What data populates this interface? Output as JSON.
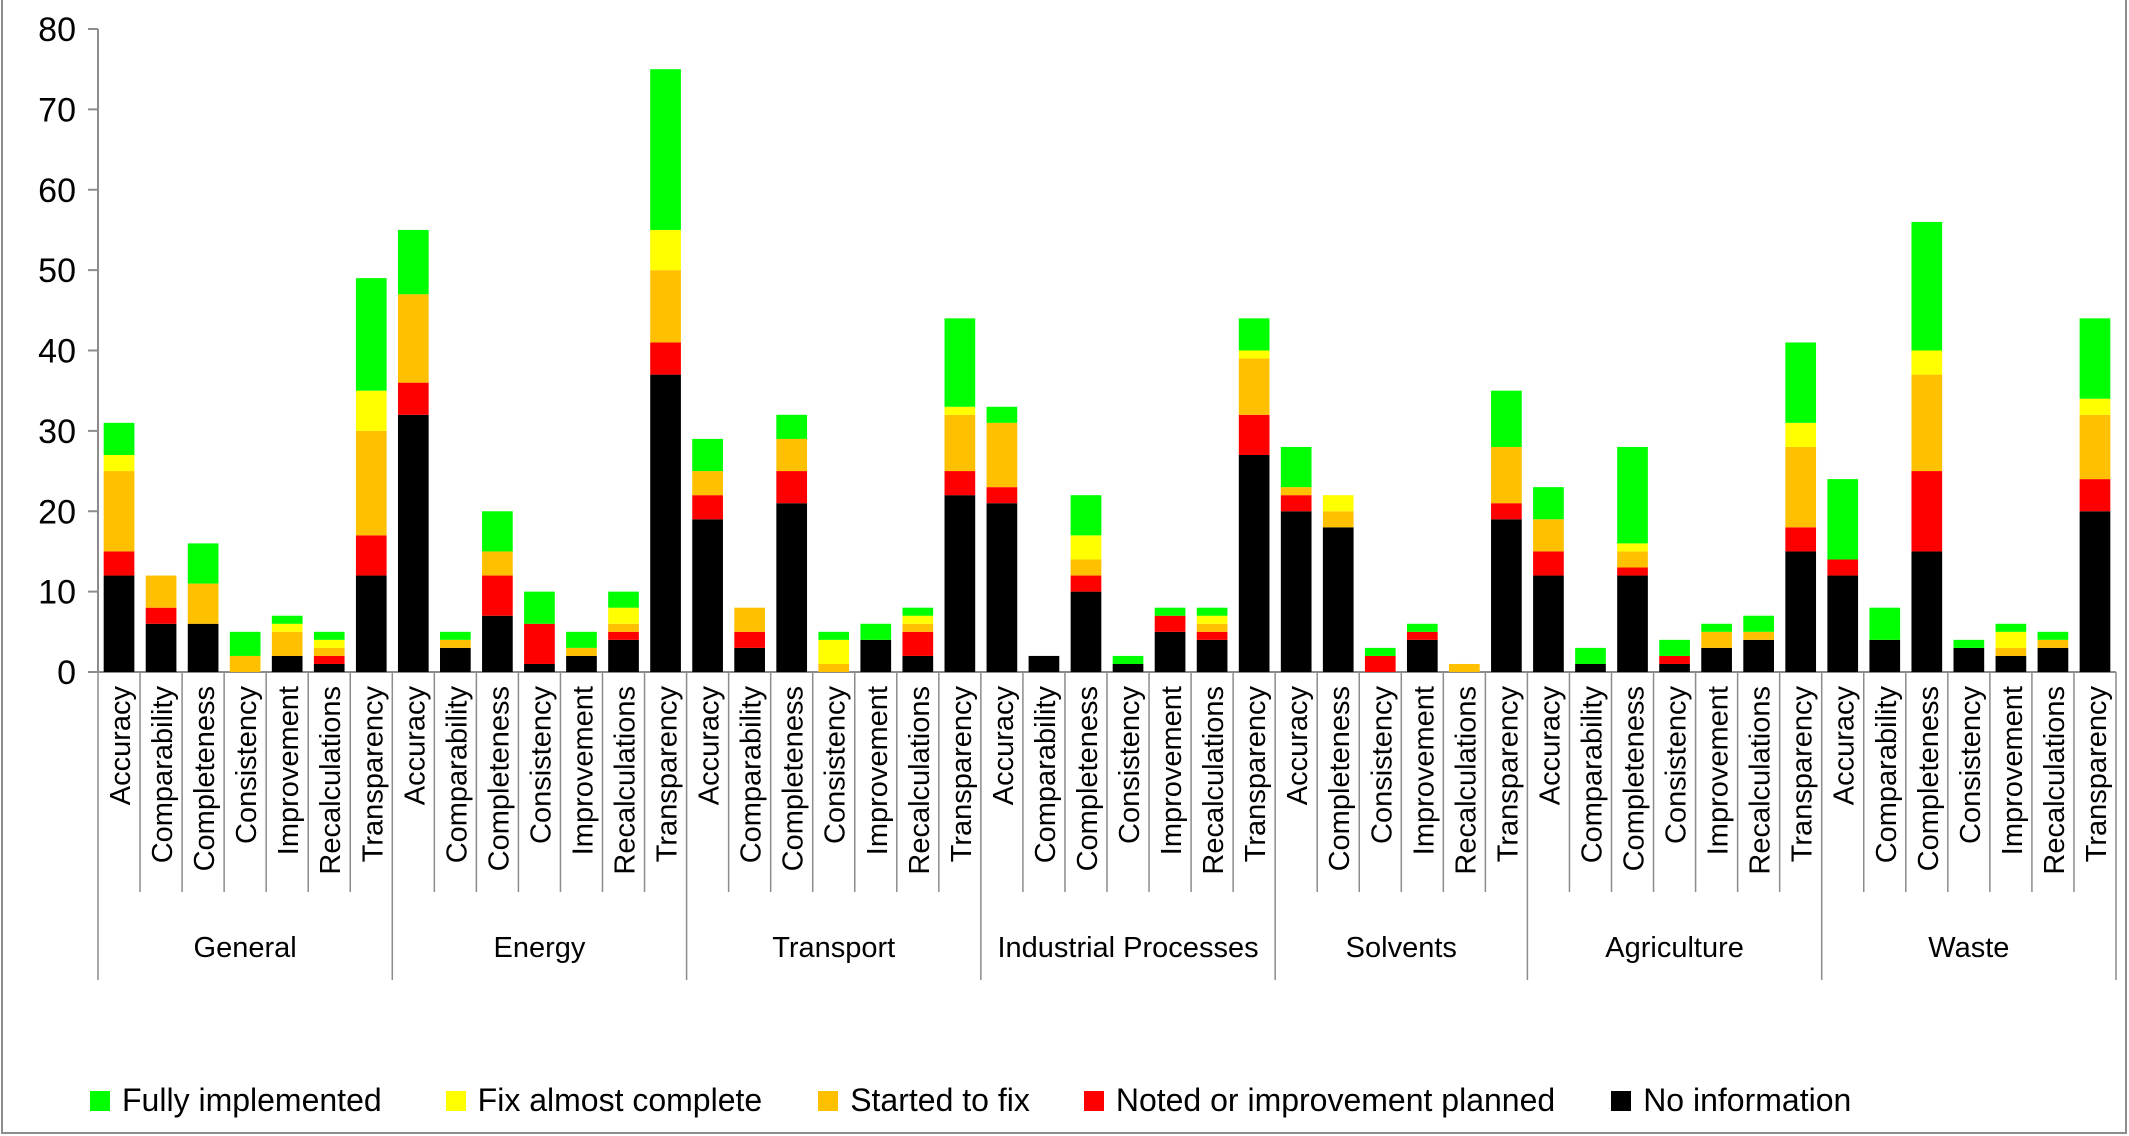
{
  "chart_data": {
    "type": "bar",
    "stacked": true,
    "ylim": [
      0,
      80
    ],
    "yticks": [
      0,
      10,
      20,
      30,
      40,
      50,
      60,
      70,
      80
    ],
    "grid": false,
    "legend_position": "bottom",
    "series": [
      {
        "name": "No information",
        "color": "#000000"
      },
      {
        "name": "Noted or improvement planned",
        "color": "#ff0000"
      },
      {
        "name": "Started to fix",
        "color": "#ffc000"
      },
      {
        "name": "Fix almost complete",
        "color": "#ffff00"
      },
      {
        "name": "Fully implemented",
        "color": "#00ff00"
      }
    ],
    "legend_order": [
      "Fully implemented",
      "Fix almost complete",
      "Started to fix",
      "Noted or improvement planned",
      "No information"
    ],
    "groups": [
      {
        "name": "General",
        "bars": [
          {
            "label": "Accuracy",
            "values": [
              12,
              3,
              10,
              2,
              4
            ]
          },
          {
            "label": "Comparability",
            "values": [
              6,
              2,
              4,
              0,
              0
            ]
          },
          {
            "label": "Completeness",
            "values": [
              6,
              0,
              5,
              0,
              5
            ]
          },
          {
            "label": "Consistency",
            "values": [
              0,
              0,
              2,
              0,
              3
            ]
          },
          {
            "label": "Improvement",
            "values": [
              2,
              0,
              3,
              1,
              1
            ]
          },
          {
            "label": "Recalculations",
            "values": [
              1,
              1,
              1,
              1,
              1
            ]
          },
          {
            "label": "Transparency",
            "values": [
              12,
              5,
              13,
              5,
              14
            ]
          }
        ]
      },
      {
        "name": "Energy",
        "bars": [
          {
            "label": "Accuracy",
            "values": [
              32,
              4,
              11,
              0,
              8
            ]
          },
          {
            "label": "Comparability",
            "values": [
              3,
              0,
              1,
              0,
              1
            ]
          },
          {
            "label": "Completeness",
            "values": [
              7,
              5,
              3,
              0,
              5
            ]
          },
          {
            "label": "Consistency",
            "values": [
              1,
              5,
              0,
              0,
              4
            ]
          },
          {
            "label": "Improvement",
            "values": [
              2,
              0,
              1,
              0,
              2
            ]
          },
          {
            "label": "Recalculations",
            "values": [
              4,
              1,
              1,
              2,
              2
            ]
          },
          {
            "label": "Transparency",
            "values": [
              37,
              4,
              9,
              5,
              20
            ]
          }
        ]
      },
      {
        "name": "Transport",
        "bars": [
          {
            "label": "Accuracy",
            "values": [
              19,
              3,
              3,
              0,
              4
            ]
          },
          {
            "label": "Comparability",
            "values": [
              3,
              2,
              3,
              0,
              0
            ]
          },
          {
            "label": "Completeness",
            "values": [
              21,
              4,
              4,
              0,
              3
            ]
          },
          {
            "label": "Consistency",
            "values": [
              0,
              0,
              1,
              3,
              1
            ]
          },
          {
            "label": "Improvement",
            "values": [
              4,
              0,
              0,
              0,
              2
            ]
          },
          {
            "label": "Recalculations",
            "values": [
              2,
              3,
              1,
              1,
              1
            ]
          },
          {
            "label": "Transparency",
            "values": [
              22,
              3,
              7,
              1,
              11
            ]
          }
        ]
      },
      {
        "name": "Industrial Processes",
        "bars": [
          {
            "label": "Accuracy",
            "values": [
              21,
              2,
              8,
              0,
              2
            ]
          },
          {
            "label": "Comparability",
            "values": [
              2,
              0,
              0,
              0,
              0
            ]
          },
          {
            "label": "Completeness",
            "values": [
              10,
              2,
              2,
              3,
              5
            ]
          },
          {
            "label": "Consistency",
            "values": [
              1,
              0,
              0,
              0,
              1
            ]
          },
          {
            "label": "Improvement",
            "values": [
              5,
              2,
              0,
              0,
              1
            ]
          },
          {
            "label": "Recalculations",
            "values": [
              4,
              1,
              1,
              1,
              1
            ]
          },
          {
            "label": "Transparency",
            "values": [
              27,
              5,
              7,
              1,
              4
            ]
          }
        ]
      },
      {
        "name": "Solvents",
        "bars": [
          {
            "label": "Accuracy",
            "values": [
              20,
              2,
              1,
              0,
              5
            ]
          },
          {
            "label": "Completeness",
            "values": [
              18,
              0,
              2,
              2,
              0
            ]
          },
          {
            "label": "Consistency",
            "values": [
              0,
              2,
              0,
              0,
              1
            ]
          },
          {
            "label": "Improvement",
            "values": [
              4,
              1,
              0,
              0,
              1
            ]
          },
          {
            "label": "Recalculations",
            "values": [
              0,
              0,
              1,
              0,
              0
            ]
          },
          {
            "label": "Transparency",
            "values": [
              19,
              2,
              7,
              0,
              7
            ]
          }
        ]
      },
      {
        "name": "Agriculture",
        "bars": [
          {
            "label": "Accuracy",
            "values": [
              12,
              3,
              4,
              0,
              4
            ]
          },
          {
            "label": "Comparability",
            "values": [
              1,
              0,
              0,
              0,
              2
            ]
          },
          {
            "label": "Completeness",
            "values": [
              12,
              1,
              2,
              1,
              12
            ]
          },
          {
            "label": "Consistency",
            "values": [
              1,
              1,
              0,
              0,
              2
            ]
          },
          {
            "label": "Improvement",
            "values": [
              3,
              0,
              2,
              0,
              1
            ]
          },
          {
            "label": "Recalculations",
            "values": [
              4,
              0,
              1,
              0,
              2
            ]
          },
          {
            "label": "Transparency",
            "values": [
              15,
              3,
              10,
              3,
              10
            ]
          }
        ]
      },
      {
        "name": "Waste",
        "bars": [
          {
            "label": "Accuracy",
            "values": [
              12,
              2,
              0,
              0,
              10
            ]
          },
          {
            "label": "Comparability",
            "values": [
              4,
              0,
              0,
              0,
              4
            ]
          },
          {
            "label": "Completeness",
            "values": [
              15,
              10,
              12,
              3,
              16
            ]
          },
          {
            "label": "Consistency",
            "values": [
              3,
              0,
              0,
              0,
              1
            ]
          },
          {
            "label": "Improvement",
            "values": [
              2,
              0,
              1,
              2,
              1
            ]
          },
          {
            "label": "Recalculations",
            "values": [
              3,
              0,
              1,
              0,
              1
            ]
          },
          {
            "label": "Transparency",
            "values": [
              20,
              4,
              8,
              2,
              10
            ]
          }
        ]
      }
    ]
  }
}
